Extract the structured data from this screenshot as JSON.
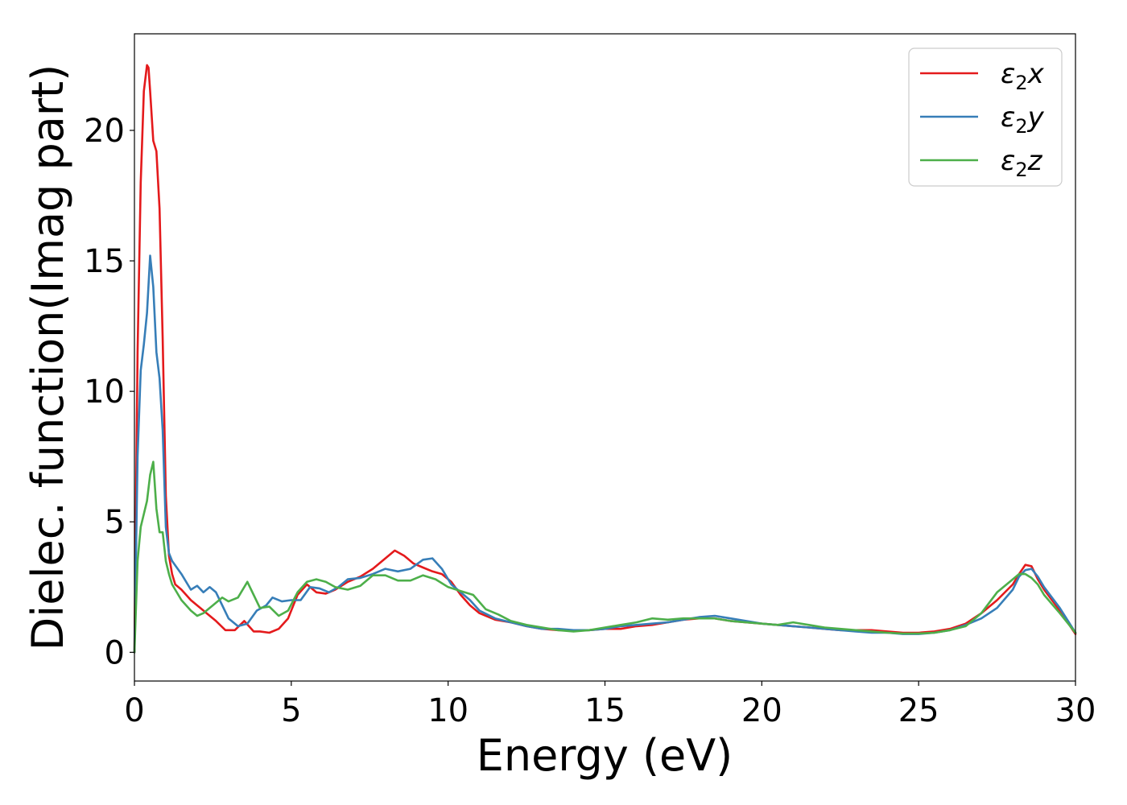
{
  "chart_data": {
    "type": "line",
    "title": "",
    "xlabel": "Energy (eV)",
    "ylabel": "Dielec. function(Imag part)",
    "xlim": [
      0,
      30
    ],
    "ylim": [
      -1.1,
      23.7
    ],
    "xticks": [
      0,
      5,
      10,
      15,
      20,
      25,
      30
    ],
    "yticks": [
      0,
      5,
      10,
      15,
      20
    ],
    "grid": false,
    "legend_position": "top-right",
    "series": [
      {
        "name": "ε2x",
        "legend": {
          "base": "ε",
          "sub": "2",
          "var": "x"
        },
        "color": "#e41a1c",
        "x": [
          0,
          0.1,
          0.2,
          0.3,
          0.4,
          0.45,
          0.5,
          0.6,
          0.7,
          0.8,
          0.9,
          1.0,
          1.1,
          1.2,
          1.3,
          1.5,
          1.8,
          2.0,
          2.3,
          2.6,
          2.9,
          3.2,
          3.5,
          3.8,
          4.0,
          4.3,
          4.6,
          4.9,
          5.2,
          5.5,
          5.8,
          6.1,
          6.4,
          6.8,
          7.2,
          7.6,
          8.0,
          8.3,
          8.6,
          8.9,
          9.2,
          9.5,
          9.8,
          10.1,
          10.4,
          10.7,
          11.0,
          11.5,
          12.0,
          12.5,
          13.0,
          13.5,
          14.0,
          14.5,
          15.0,
          15.5,
          16.0,
          16.5,
          17.0,
          17.5,
          18.0,
          18.5,
          19.0,
          19.5,
          20.0,
          20.5,
          21.0,
          21.5,
          22.0,
          22.5,
          23.0,
          23.5,
          24.0,
          24.5,
          25.0,
          25.5,
          26.0,
          26.5,
          27.0,
          27.5,
          28.0,
          28.2,
          28.4,
          28.6,
          28.8,
          29.0,
          29.5,
          30.0
        ],
        "y": [
          0,
          11.5,
          18.0,
          21.5,
          22.5,
          22.4,
          21.5,
          19.6,
          19.2,
          17.0,
          12.0,
          6.0,
          3.7,
          3.0,
          2.6,
          2.4,
          2.0,
          1.8,
          1.5,
          1.2,
          0.85,
          0.85,
          1.2,
          0.8,
          0.8,
          0.75,
          0.9,
          1.3,
          2.2,
          2.6,
          2.3,
          2.25,
          2.4,
          2.7,
          2.9,
          3.2,
          3.6,
          3.9,
          3.7,
          3.4,
          3.25,
          3.1,
          3.0,
          2.7,
          2.2,
          1.8,
          1.5,
          1.25,
          1.15,
          1.0,
          0.9,
          0.85,
          0.85,
          0.85,
          0.9,
          0.9,
          1.0,
          1.05,
          1.15,
          1.25,
          1.3,
          1.3,
          1.2,
          1.15,
          1.1,
          1.05,
          1.0,
          0.95,
          0.9,
          0.85,
          0.85,
          0.85,
          0.8,
          0.75,
          0.75,
          0.8,
          0.9,
          1.1,
          1.5,
          2.0,
          2.6,
          3.0,
          3.35,
          3.3,
          2.8,
          2.4,
          1.6,
          0.7
        ]
      },
      {
        "name": "ε2y",
        "legend": {
          "base": "ε",
          "sub": "2",
          "var": "y"
        },
        "color": "#377eb8",
        "x": [
          0,
          0.1,
          0.2,
          0.3,
          0.4,
          0.5,
          0.6,
          0.7,
          0.8,
          0.9,
          1.0,
          1.1,
          1.2,
          1.5,
          1.8,
          2.0,
          2.2,
          2.4,
          2.6,
          2.8,
          3.0,
          3.3,
          3.6,
          3.9,
          4.2,
          4.4,
          4.7,
          5.0,
          5.3,
          5.6,
          5.9,
          6.2,
          6.5,
          6.8,
          7.2,
          7.6,
          8.0,
          8.4,
          8.8,
          9.2,
          9.5,
          9.8,
          10.1,
          10.4,
          10.7,
          11.0,
          11.5,
          12.0,
          12.5,
          13.0,
          13.5,
          14.0,
          14.5,
          15.0,
          15.5,
          16.0,
          16.5,
          17.0,
          17.5,
          18.0,
          18.5,
          19.0,
          19.5,
          20.0,
          20.5,
          21.0,
          21.5,
          22.0,
          22.5,
          23.0,
          23.5,
          24.0,
          24.5,
          25.0,
          25.5,
          26.0,
          26.5,
          27.0,
          27.5,
          28.0,
          28.2,
          28.4,
          28.6,
          28.8,
          29.0,
          29.5,
          30.0
        ],
        "y": [
          0,
          7.5,
          10.8,
          11.8,
          13.0,
          15.2,
          14.0,
          11.5,
          10.5,
          8.5,
          4.8,
          3.8,
          3.5,
          3.0,
          2.4,
          2.55,
          2.3,
          2.5,
          2.3,
          1.8,
          1.3,
          1.0,
          1.1,
          1.6,
          1.8,
          2.1,
          1.95,
          2.0,
          2.0,
          2.5,
          2.45,
          2.3,
          2.5,
          2.8,
          2.85,
          3.0,
          3.2,
          3.1,
          3.2,
          3.55,
          3.6,
          3.2,
          2.6,
          2.3,
          2.0,
          1.6,
          1.3,
          1.15,
          1.0,
          0.9,
          0.9,
          0.85,
          0.85,
          0.9,
          1.0,
          1.05,
          1.1,
          1.15,
          1.25,
          1.35,
          1.4,
          1.3,
          1.2,
          1.1,
          1.05,
          1.0,
          0.95,
          0.9,
          0.85,
          0.8,
          0.75,
          0.75,
          0.7,
          0.7,
          0.75,
          0.85,
          1.05,
          1.3,
          1.7,
          2.4,
          2.9,
          3.15,
          3.2,
          2.9,
          2.5,
          1.7,
          0.75
        ]
      },
      {
        "name": "ε2z",
        "legend": {
          "base": "ε",
          "sub": "2",
          "var": "z"
        },
        "color": "#4daf4a",
        "x": [
          0,
          0.1,
          0.2,
          0.3,
          0.4,
          0.5,
          0.6,
          0.7,
          0.8,
          0.9,
          1.0,
          1.1,
          1.2,
          1.5,
          1.8,
          2.0,
          2.2,
          2.5,
          2.8,
          3.0,
          3.3,
          3.6,
          3.8,
          4.0,
          4.3,
          4.6,
          4.9,
          5.2,
          5.5,
          5.8,
          6.1,
          6.4,
          6.8,
          7.2,
          7.6,
          8.0,
          8.4,
          8.8,
          9.2,
          9.6,
          10.0,
          10.4,
          10.8,
          11.2,
          11.6,
          12.0,
          12.5,
          13.0,
          13.5,
          14.0,
          14.5,
          15.0,
          15.5,
          16.0,
          16.5,
          17.0,
          17.5,
          18.0,
          18.5,
          19.0,
          19.5,
          20.0,
          20.5,
          21.0,
          21.5,
          22.0,
          22.5,
          23.0,
          23.5,
          24.0,
          24.5,
          25.0,
          25.5,
          26.0,
          26.5,
          27.0,
          27.5,
          28.0,
          28.2,
          28.4,
          28.6,
          28.8,
          29.0,
          29.5,
          30.0
        ],
        "y": [
          0,
          3.5,
          4.8,
          5.3,
          5.8,
          6.8,
          7.3,
          5.5,
          4.6,
          4.6,
          3.5,
          3.0,
          2.6,
          2.0,
          1.6,
          1.4,
          1.5,
          1.8,
          2.1,
          1.95,
          2.1,
          2.7,
          2.2,
          1.7,
          1.75,
          1.4,
          1.6,
          2.3,
          2.7,
          2.8,
          2.7,
          2.5,
          2.4,
          2.55,
          2.95,
          2.95,
          2.75,
          2.75,
          2.95,
          2.8,
          2.5,
          2.35,
          2.2,
          1.65,
          1.45,
          1.2,
          1.05,
          0.95,
          0.85,
          0.8,
          0.85,
          0.95,
          1.05,
          1.15,
          1.3,
          1.25,
          1.3,
          1.3,
          1.3,
          1.2,
          1.15,
          1.1,
          1.05,
          1.15,
          1.05,
          0.95,
          0.9,
          0.85,
          0.8,
          0.75,
          0.72,
          0.72,
          0.75,
          0.85,
          1.0,
          1.5,
          2.3,
          2.8,
          3.0,
          3.0,
          2.85,
          2.6,
          2.2,
          1.5,
          0.75
        ]
      }
    ]
  }
}
